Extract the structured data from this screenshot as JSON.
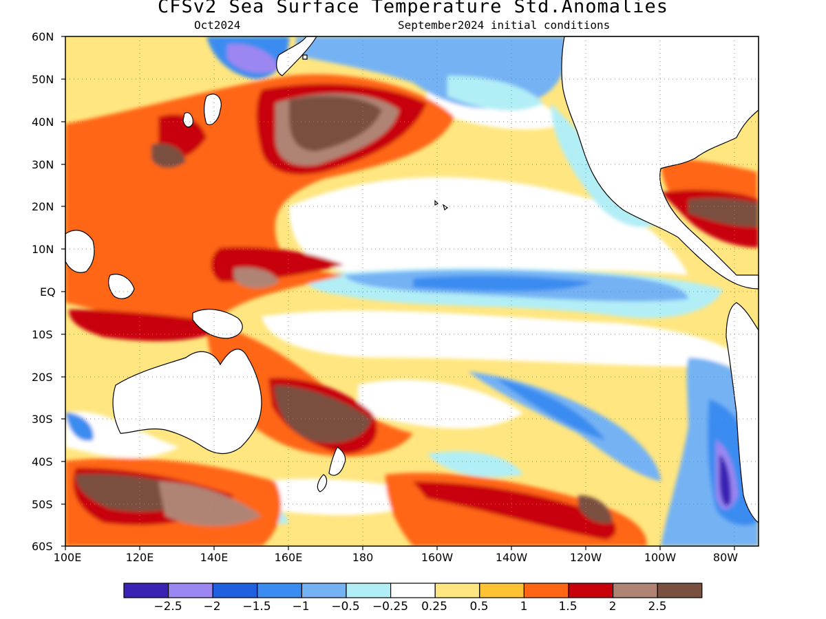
{
  "title": "CFSv2 Sea Surface Temperature Std.Anomalies",
  "subtitle_left": "Oct2024",
  "subtitle_right": "September2024 initial conditions",
  "lat_labels": [
    "60N",
    "50N",
    "40N",
    "30N",
    "20N",
    "10N",
    "EQ",
    "10S",
    "20S",
    "30S",
    "40S",
    "50S",
    "60S"
  ],
  "lon_labels": [
    "100E",
    "120E",
    "140E",
    "160E",
    "180",
    "160W",
    "140W",
    "120W",
    "100W",
    "80W"
  ],
  "colorbar": {
    "colors": [
      "#3a22b4",
      "#9c86f2",
      "#1e60e0",
      "#3a8cf0",
      "#74b2f4",
      "#b2eef6",
      "#ffffff",
      "#ffe680",
      "#ffc232",
      "#ff6614",
      "#c8000a",
      "#b08474",
      "#7a5040"
    ],
    "labels": [
      "−2.5",
      "−2",
      "−1.5",
      "−1",
      "−0.5",
      "−0.25",
      "0.25",
      "0.5",
      "1",
      "1.5",
      "2",
      "2.5"
    ]
  }
}
